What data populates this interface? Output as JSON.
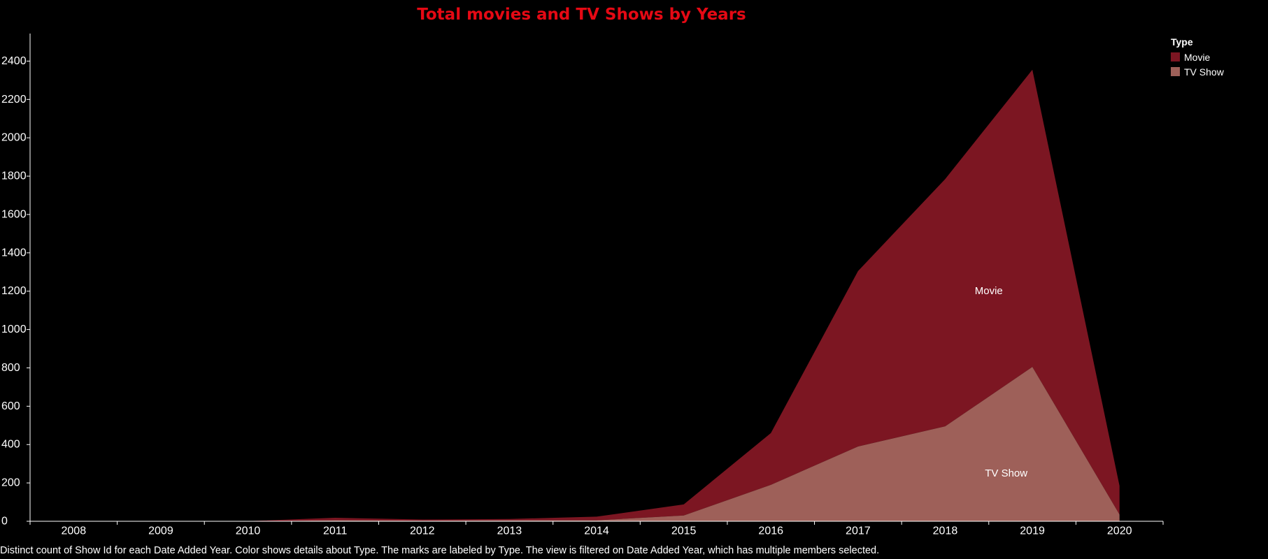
{
  "chart_data": {
    "type": "area",
    "stacked": true,
    "title": "Total movies and TV Shows by Years",
    "xlabel": "",
    "ylabel": "",
    "categories": [
      "2008",
      "2009",
      "2010",
      "2011",
      "2012",
      "2013",
      "2014",
      "2015",
      "2016",
      "2017",
      "2018",
      "2019",
      "2020"
    ],
    "series": [
      {
        "name": "TV Show",
        "color": "#9e6059",
        "values": [
          0,
          0,
          0,
          5,
          3,
          5,
          5,
          30,
          190,
          390,
          495,
          805,
          35
        ]
      },
      {
        "name": "Movie",
        "color": "#7c1622",
        "values": [
          1,
          2,
          1,
          13,
          6,
          7,
          19,
          58,
          270,
          915,
          1290,
          1550,
          150
        ]
      }
    ],
    "ylim": [
      0,
      2500
    ],
    "yticks": [
      0,
      200,
      400,
      600,
      800,
      1000,
      1200,
      1400,
      1600,
      1800,
      2000,
      2200,
      2400
    ],
    "legend": {
      "title": "Type",
      "placement": "top-right",
      "entries": [
        "Movie",
        "TV Show"
      ]
    },
    "mark_labels": [
      "Movie",
      "TV Show"
    ],
    "caption": "Distinct count of Show Id for each Date Added Year.  Color shows details about Type.  The marks are labeled by Type. The view is filtered on Date Added Year, which has multiple members selected."
  }
}
